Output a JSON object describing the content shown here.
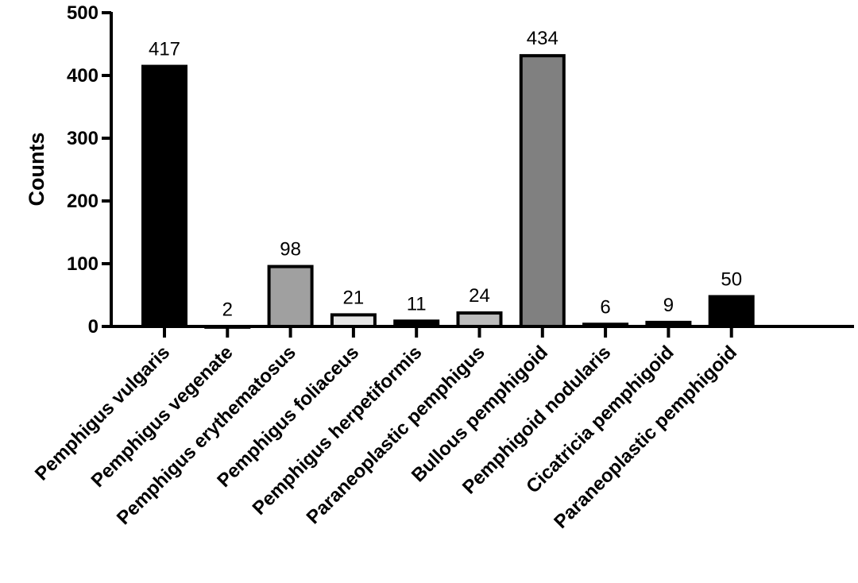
{
  "chart_data": {
    "type": "bar",
    "title": "",
    "xlabel": "",
    "ylabel": "Counts",
    "ylim": [
      0,
      500
    ],
    "yticks": [
      0,
      100,
      200,
      300,
      400,
      500
    ],
    "grid": false,
    "categories": [
      "Pemphigus vulgaris",
      "Pemphigus vegenate",
      "Pemphigus erythematosus",
      "Pemphigus foliaceus",
      "Pemphigus herpetiformis",
      "Paraneoplastic pemphigus",
      "Bullous pemphigoid",
      "Pemphigoid nodularis",
      "Cicatricia pemphigoid",
      "Paraneoplastic pemphigoid"
    ],
    "values": [
      417,
      2,
      98,
      21,
      11,
      24,
      434,
      6,
      9,
      50
    ],
    "data_labels": [
      "417",
      "2",
      "98",
      "21",
      "11",
      "24",
      "434",
      "6",
      "9",
      "50"
    ],
    "bar_fills": [
      "#000000",
      "#ffffff",
      "#a0a0a0",
      "#e6e6e6",
      "#000000",
      "#bcbcbc",
      "#808080",
      "#000000",
      "#000000",
      "#000000"
    ]
  }
}
